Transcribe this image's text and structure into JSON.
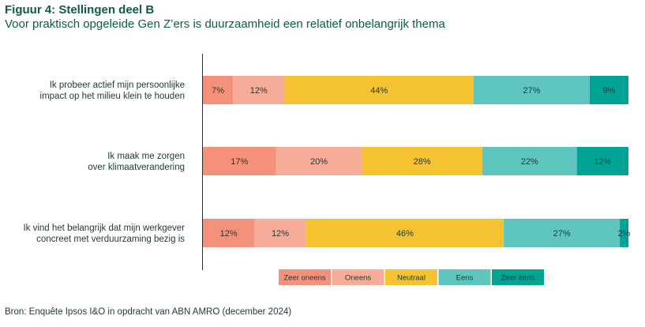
{
  "figure": {
    "title": "Figuur 4: Stellingen deel B",
    "subtitle": "Voor praktisch opgeleide Gen Z’ers is duurzaamheid een relatief onbelangrijk thema",
    "source": "Bron: Enquête Ipsos I&O in opdracht van ABN AMRO (december 2024)"
  },
  "colors": {
    "zeer_oneens": "#F4917B",
    "oneens": "#F7AB99",
    "neutraal": "#F5C231",
    "eens": "#5EC6BE",
    "zeer_eens": "#00A394"
  },
  "chart_data": {
    "type": "bar",
    "orientation": "horizontal-stacked-100",
    "categories": [
      [
        "Ik probeer actief mijn persoonlijke",
        "impact op het milieu klein te houden"
      ],
      [
        "Ik maak me zorgen",
        "over klimaatverandering"
      ],
      [
        "Ik vind het belangrijk dat mijn werkgever",
        "concreet met verduurzaming bezig is"
      ]
    ],
    "series": [
      {
        "name": "Zeer oneens",
        "color_key": "zeer_oneens",
        "values": [
          7,
          17,
          12
        ]
      },
      {
        "name": "Oneens",
        "color_key": "oneens",
        "values": [
          12,
          20,
          12
        ]
      },
      {
        "name": "Neutraal",
        "color_key": "neutraal",
        "values": [
          44,
          28,
          46
        ]
      },
      {
        "name": "Eens",
        "color_key": "eens",
        "values": [
          27,
          22,
          27
        ]
      },
      {
        "name": "Zeer eens",
        "color_key": "zeer_eens",
        "values": [
          9,
          12,
          2
        ]
      }
    ],
    "value_suffix": "%",
    "legend_position": "bottom",
    "grid": false
  }
}
